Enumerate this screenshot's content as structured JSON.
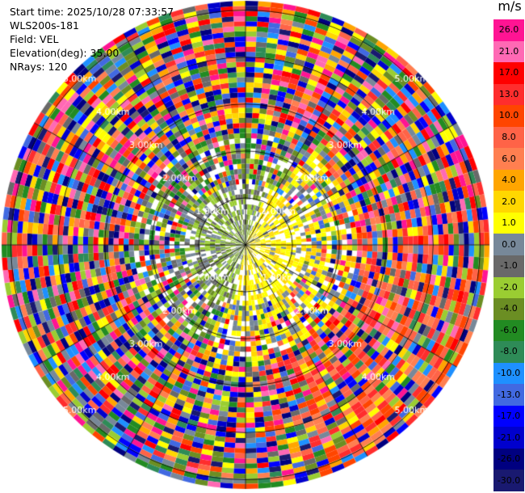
{
  "info": {
    "start_time": "Start time: 2025/10/28 07:33:57",
    "device": "WLS200s-181",
    "field": "Field: VEL",
    "elevation": "Elevation(deg): 35.00",
    "nrays": "NRays: 120"
  },
  "chart_data": {
    "type": "heatmap",
    "projection": "polar-ppi",
    "field": "VEL",
    "unit": "m/s",
    "n_rays": 120,
    "elevation_deg": 35.0,
    "range_rings_km": [
      1,
      2,
      3,
      4,
      5
    ],
    "range_labels": [
      "1.00km",
      "2.00km",
      "3.00km",
      "4.00km",
      "5.00km"
    ],
    "max_range_km": 5.2,
    "colorbar": {
      "unit": "m/s",
      "ticks": [
        "26.0",
        "21.0",
        "17.0",
        "13.0",
        "10.0",
        "8.0",
        "6.0",
        "4.0",
        "2.0",
        "1.0",
        "0.0",
        "-1.0",
        "-2.0",
        "-4.0",
        "-6.0",
        "-8.0",
        "-10.0",
        "-13.0",
        "-17.0",
        "-21.0",
        "-26.0",
        "-30.0"
      ],
      "colors": [
        "#ff1493",
        "#ff69b4",
        "#ff0000",
        "#ff2d2d",
        "#ff4500",
        "#ff6347",
        "#ff7f50",
        "#ffa500",
        "#ffd700",
        "#ffff00",
        "#778899",
        "#696969",
        "#9acd32",
        "#6b8e23",
        "#228b22",
        "#2e8b57",
        "#1e90ff",
        "#4169e1",
        "#0000ff",
        "#0000cd",
        "#000080",
        "#191970"
      ]
    }
  }
}
